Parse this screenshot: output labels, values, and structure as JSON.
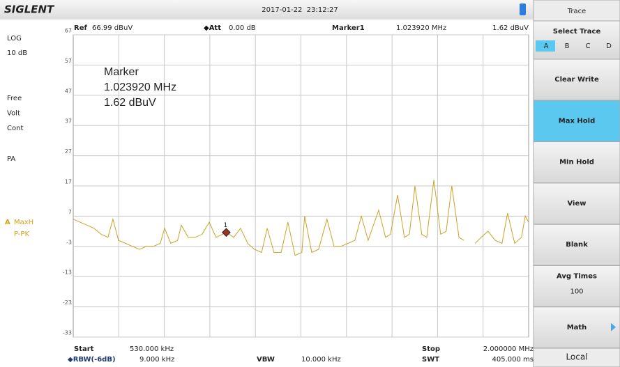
{
  "top_bar": {
    "logo": "SIGLENT",
    "datetime": "2017-01-22  23:12:27"
  },
  "left_panel": {
    "scale": "LOG",
    "division": "10 dB",
    "lines": [
      "Free",
      "Volt",
      "Cont"
    ],
    "preamp": "PA",
    "trace_letter": "A",
    "trace_mode": "MaxH",
    "trace_detector": "P-PK"
  },
  "header": {
    "ref_label": "Ref",
    "ref_value": "66.99 dBuV",
    "att_label": "◆Att",
    "att_value": "0.00 dB",
    "marker_label": "Marker1",
    "marker_freq": "1.023920 MHz",
    "marker_level": "1.62 dBuV"
  },
  "footer": {
    "start_label": "Start",
    "start_value": "530.000 kHz",
    "stop_label": "Stop",
    "stop_value": "2.000000 MHz",
    "rbw_label": "◆RBW(-6dB)",
    "rbw_value": "9.000 kHz",
    "vbw_label": "VBW",
    "vbw_value": "10.000 kHz",
    "swt_label": "SWT",
    "swt_value": "405.000 ms"
  },
  "chart_data": {
    "type": "line",
    "color": "#c9a227",
    "grid": true,
    "x_divisions": 10,
    "xlim": [
      530,
      2000
    ],
    "ylim": [
      -33,
      67
    ],
    "yticks": [
      67,
      57,
      47,
      37,
      27,
      17,
      7,
      -3,
      -13,
      -23,
      -33
    ],
    "x": [
      530,
      552,
      575,
      597,
      620,
      642,
      658,
      676,
      699,
      721,
      744,
      766,
      789,
      811,
      825,
      845,
      867,
      879,
      901,
      924,
      946,
      969,
      991,
      1025,
      1048,
      1070,
      1093,
      1115,
      1138,
      1156,
      1178,
      1201,
      1223,
      1246,
      1268,
      1277,
      1300,
      1322,
      1349,
      1372,
      1394,
      1417,
      1439,
      1460,
      1482,
      1516,
      1538,
      1554,
      1577,
      1599,
      1615,
      1633,
      1655,
      1671,
      1694,
      1716,
      1734,
      1752,
      1775,
      1791,
      1806,
      1827,
      1847,
      1869,
      1892,
      1914,
      1932,
      1955,
      1977,
      1989,
      2000
    ],
    "values": [
      6,
      5,
      4,
      3,
      1,
      0,
      6,
      -1,
      -2,
      -3,
      -4,
      -3,
      -3,
      -2,
      3,
      -2,
      -1,
      4,
      0,
      0,
      1,
      5,
      0,
      1.62,
      0,
      3,
      -2,
      -4,
      -5,
      3,
      -5,
      -5,
      5,
      -6,
      -5,
      7,
      -5,
      -4,
      6,
      -3,
      -3,
      -2,
      -1,
      7,
      -1,
      9,
      0,
      1,
      14,
      0,
      1,
      17,
      1,
      0,
      19,
      1,
      2,
      17,
      0,
      -1,
      null,
      -2,
      0,
      2,
      -1,
      -2,
      8,
      -2,
      0,
      7,
      5
    ],
    "marker": {
      "label": "1",
      "x": 1023.92,
      "y": 1.62,
      "color": "#a0321e"
    },
    "annotation": [
      "Marker",
      "1.023920 MHz",
      "1.62 dBuV"
    ]
  },
  "menu": {
    "title": "Trace",
    "select_label": "Select Trace",
    "traces": [
      "A",
      "B",
      "C",
      "D"
    ],
    "active_trace": 0,
    "buttons": [
      {
        "label": "Clear Write"
      },
      {
        "label": "Max Hold"
      },
      {
        "label": "Min Hold"
      },
      {
        "label": "View"
      },
      {
        "label": "Blank"
      },
      {
        "label": "Avg Times",
        "value": "100"
      },
      {
        "label": "Math"
      }
    ],
    "active_button": 1,
    "status": "Local"
  }
}
